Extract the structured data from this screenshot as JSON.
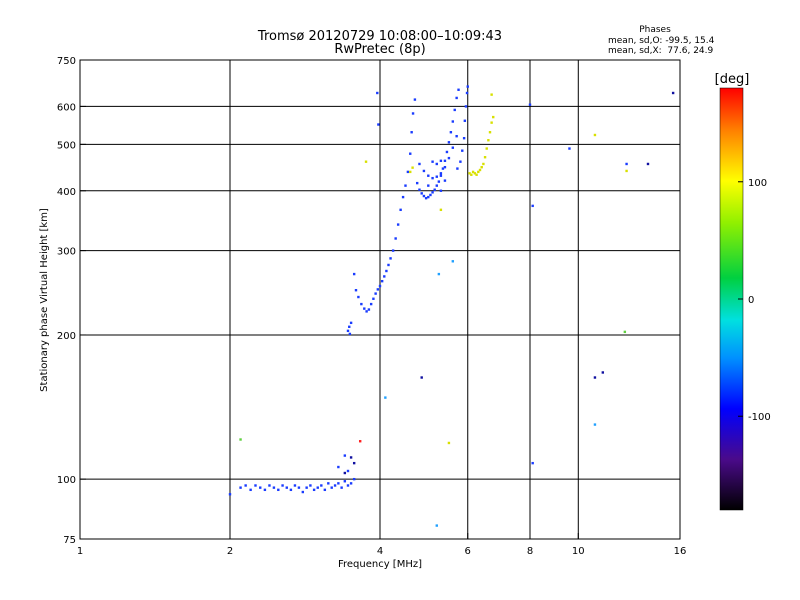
{
  "chart_data": {
    "type": "scatter",
    "title": "Tromsø 20120729 10:08:00–10:09:43",
    "subtitle": "RwPretec (8p)",
    "xlabel": "Frequency [MHz]",
    "ylabel": "Stationary phase Virtual Height [km]",
    "x_scale": "log",
    "y_scale": "log",
    "xlim": [
      1,
      16
    ],
    "ylim": [
      75,
      750
    ],
    "x_ticks": [
      1,
      2,
      4,
      6,
      8,
      10,
      16
    ],
    "x_tick_labels": [
      "1",
      "2",
      "4",
      "6",
      "8",
      "10",
      "16"
    ],
    "y_ticks": [
      75,
      100,
      200,
      300,
      400,
      500,
      600,
      750
    ],
    "y_tick_labels": [
      "75",
      "100",
      "200",
      "300",
      "400",
      "500",
      "600",
      "750"
    ],
    "grid": true,
    "stats": {
      "heading": "Phases",
      "line_o": "mean, sd,O: -99.5, 15.4",
      "line_x": "mean, sd,X:  77.6, 24.9"
    },
    "colorbar": {
      "label": "[deg]",
      "range": [
        -180,
        180
      ],
      "ticks": [
        100,
        0,
        -100
      ],
      "tick_labels": [
        "100",
        "0",
        "-100"
      ]
    },
    "series": [
      {
        "name": "",
        "color": "#1a3cff",
        "points": [
          [
            2.0,
            93
          ],
          [
            2.1,
            96
          ],
          [
            2.15,
            97
          ],
          [
            2.2,
            95
          ],
          [
            2.25,
            97
          ],
          [
            2.3,
            96
          ],
          [
            2.35,
            95
          ],
          [
            2.4,
            97
          ],
          [
            2.45,
            96
          ],
          [
            2.5,
            95
          ],
          [
            2.55,
            97
          ],
          [
            2.6,
            96
          ],
          [
            2.65,
            95
          ],
          [
            2.7,
            97
          ],
          [
            2.75,
            96
          ],
          [
            2.8,
            94
          ],
          [
            2.85,
            96
          ],
          [
            2.9,
            97
          ],
          [
            2.95,
            95
          ],
          [
            3.0,
            96
          ],
          [
            3.05,
            97
          ],
          [
            3.1,
            95
          ],
          [
            3.15,
            98
          ],
          [
            3.2,
            96
          ],
          [
            3.25,
            97
          ],
          [
            3.3,
            98
          ],
          [
            3.35,
            96
          ],
          [
            3.4,
            99
          ],
          [
            3.45,
            97
          ],
          [
            3.5,
            98
          ],
          [
            3.55,
            100
          ],
          [
            3.3,
            106
          ],
          [
            3.4,
            112
          ],
          [
            3.45,
            104
          ],
          [
            3.45,
            204
          ],
          [
            3.47,
            208
          ],
          [
            3.48,
            201
          ],
          [
            3.5,
            212
          ],
          [
            3.55,
            268
          ],
          [
            3.58,
            248
          ],
          [
            3.62,
            240
          ],
          [
            3.67,
            232
          ],
          [
            3.72,
            227
          ],
          [
            3.76,
            224
          ],
          [
            3.8,
            226
          ],
          [
            3.84,
            232
          ],
          [
            3.88,
            238
          ],
          [
            3.92,
            244
          ],
          [
            3.96,
            249
          ],
          [
            4.0,
            253
          ],
          [
            4.04,
            259
          ],
          [
            4.08,
            265
          ],
          [
            4.12,
            272
          ],
          [
            4.16,
            280
          ],
          [
            4.2,
            289
          ],
          [
            4.25,
            300
          ],
          [
            4.3,
            318
          ],
          [
            4.35,
            340
          ],
          [
            4.4,
            365
          ],
          [
            4.45,
            388
          ],
          [
            4.5,
            410
          ],
          [
            4.55,
            438
          ],
          [
            4.6,
            478
          ],
          [
            4.63,
            530
          ],
          [
            4.66,
            580
          ],
          [
            4.7,
            620
          ],
          [
            3.95,
            640
          ],
          [
            3.97,
            550
          ],
          [
            4.75,
            415
          ],
          [
            4.8,
            402
          ],
          [
            4.85,
            395
          ],
          [
            4.9,
            390
          ],
          [
            4.95,
            386
          ],
          [
            5.0,
            388
          ],
          [
            5.05,
            392
          ],
          [
            5.1,
            397
          ],
          [
            5.15,
            402
          ],
          [
            5.2,
            410
          ],
          [
            5.25,
            418
          ],
          [
            5.3,
            430
          ],
          [
            5.35,
            445
          ],
          [
            5.4,
            462
          ],
          [
            5.45,
            482
          ],
          [
            5.5,
            505
          ],
          [
            5.55,
            530
          ],
          [
            5.6,
            558
          ],
          [
            5.65,
            590
          ],
          [
            5.7,
            625
          ],
          [
            5.75,
            650
          ],
          [
            4.8,
            455
          ],
          [
            4.9,
            440
          ],
          [
            5.0,
            430
          ],
          [
            5.1,
            425
          ],
          [
            5.2,
            428
          ],
          [
            5.3,
            435
          ],
          [
            5.4,
            448
          ],
          [
            5.5,
            468
          ],
          [
            5.6,
            492
          ],
          [
            5.7,
            520
          ],
          [
            5.72,
            445
          ],
          [
            5.8,
            460
          ],
          [
            5.85,
            485
          ],
          [
            5.9,
            515
          ],
          [
            5.92,
            560
          ],
          [
            5.95,
            600
          ],
          [
            5.98,
            640
          ],
          [
            6.0,
            660
          ],
          [
            5.1,
            460
          ],
          [
            5.2,
            455
          ],
          [
            5.3,
            462
          ],
          [
            5.0,
            410
          ],
          [
            5.3,
            400
          ],
          [
            5.4,
            420
          ],
          [
            8.0,
            605
          ],
          [
            8.1,
            372
          ],
          [
            8.1,
            108
          ],
          [
            9.6,
            490
          ],
          [
            12.5,
            455
          ]
        ]
      },
      {
        "name": "",
        "color": "#d8e000",
        "points": [
          [
            6.05,
            435
          ],
          [
            6.1,
            432
          ],
          [
            6.15,
            438
          ],
          [
            6.2,
            435
          ],
          [
            6.25,
            432
          ],
          [
            6.3,
            438
          ],
          [
            6.35,
            442
          ],
          [
            6.4,
            448
          ],
          [
            6.45,
            455
          ],
          [
            6.5,
            470
          ],
          [
            6.55,
            490
          ],
          [
            6.6,
            510
          ],
          [
            6.65,
            530
          ],
          [
            6.7,
            555
          ],
          [
            6.75,
            570
          ],
          [
            6.7,
            635
          ],
          [
            4.65,
            447
          ],
          [
            4.6,
            438
          ],
          [
            3.75,
            460
          ],
          [
            5.3,
            365
          ],
          [
            5.5,
            119
          ],
          [
            10.8,
            523
          ],
          [
            12.5,
            440
          ]
        ]
      },
      {
        "name": "",
        "color": "#20a0ff",
        "points": [
          [
            5.6,
            285
          ],
          [
            5.25,
            268
          ],
          [
            5.2,
            80
          ],
          [
            4.1,
            148
          ],
          [
            10.8,
            130
          ]
        ]
      },
      {
        "name": "",
        "color": "#1010a0",
        "points": [
          [
            3.5,
            111
          ],
          [
            3.55,
            108
          ],
          [
            3.4,
            103
          ],
          [
            4.85,
            163
          ],
          [
            10.8,
            163
          ],
          [
            11.2,
            167
          ],
          [
            15.5,
            640
          ],
          [
            13.8,
            455
          ]
        ]
      },
      {
        "name": "",
        "color": "#ff2020",
        "points": [
          [
            3.65,
            120
          ]
        ]
      },
      {
        "name": "",
        "color": "#60d040",
        "points": [
          [
            2.1,
            121
          ],
          [
            12.4,
            203
          ]
        ]
      }
    ]
  }
}
